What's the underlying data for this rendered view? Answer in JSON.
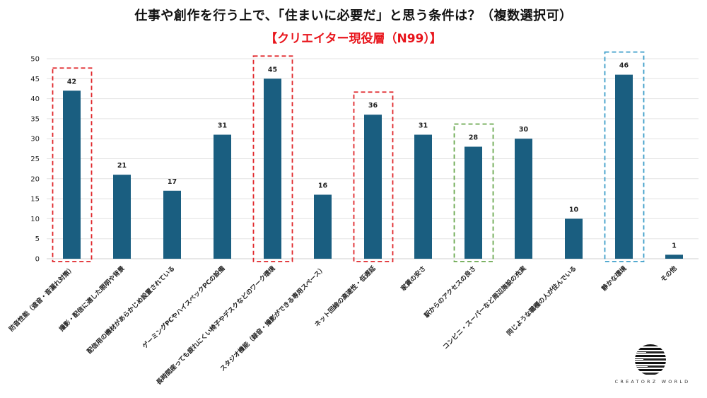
{
  "header": {
    "title": "仕事や創作を行う上で、「住まいに必要だ」と思う条件は？（複数選択可）",
    "subtitle": "【クリエイター現役層（N99）】"
  },
  "colors": {
    "bar": "#1a5e80",
    "title_red": "#e8141b",
    "highlight_red": "#e0262a",
    "highlight_green": "#6aa84f",
    "highlight_blue": "#3d9ec9",
    "gridline": "#e3e3e3"
  },
  "chart_data": {
    "type": "bar",
    "title": "仕事や創作を行う上で、「住まいに必要だ」と思う条件は？（複数選択可）",
    "subtitle": "【クリエイター現役層（N99）】",
    "xlabel": "",
    "ylabel": "",
    "ylim": [
      0,
      50
    ],
    "yticks": [
      0,
      5,
      10,
      15,
      20,
      25,
      30,
      35,
      40,
      45,
      50
    ],
    "grid": true,
    "legend": null,
    "categories": [
      "防音性能（遮音・音漏れ対策）",
      "撮影・配信に適した照明や背景",
      "配信用の機材があらかじめ設置されている",
      "ゲーミングPCやハイスペックPCの設備",
      "長時間座っても疲れにくい椅子やデスクなどのワーク環境",
      "スタジオ機能（録音・撮影ができる専用スペース）",
      "ネット回線の高速性・低遅延",
      "家賃の安さ",
      "駅からのアクセスの良さ",
      "コンビニ・スーパーなど周辺施設の充実",
      "同じような職種の人が住んでいる",
      "静かな環境",
      "その他"
    ],
    "values": [
      42,
      21,
      17,
      31,
      45,
      16,
      36,
      31,
      28,
      30,
      10,
      46,
      1
    ],
    "highlights": [
      {
        "index": 0,
        "color": "red"
      },
      {
        "index": 4,
        "color": "red"
      },
      {
        "index": 6,
        "color": "red"
      },
      {
        "index": 8,
        "color": "green"
      },
      {
        "index": 11,
        "color": "blue"
      }
    ]
  },
  "logo": {
    "icon": "striped-globe-icon",
    "text": "CREATORZ WORLD"
  }
}
